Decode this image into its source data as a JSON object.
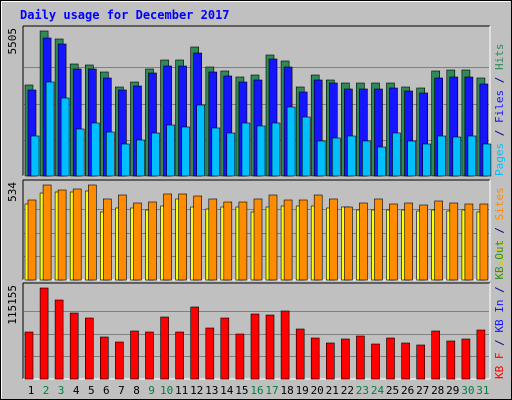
{
  "chart_data": {
    "type": "bar",
    "title": "Daily usage for December 2017",
    "days": [
      "1",
      "2",
      "3",
      "4",
      "5",
      "6",
      "7",
      "8",
      "9",
      "10",
      "11",
      "12",
      "13",
      "14",
      "15",
      "16",
      "17",
      "18",
      "19",
      "20",
      "21",
      "22",
      "23",
      "24",
      "25",
      "26",
      "27",
      "28",
      "29",
      "30",
      "31"
    ],
    "weekend_days": [
      2,
      3,
      9,
      10,
      16,
      17,
      23,
      24,
      30,
      31
    ],
    "panels": [
      {
        "id": "top",
        "max_label": "5505",
        "max_value": 5505,
        "series": [
          {
            "name": "Hits",
            "color": "#2e8b57",
            "values": [
              3440,
              5505,
              5220,
              4260,
              4230,
              3930,
              3390,
              3580,
              4060,
              4400,
              4400,
              4900,
              4140,
              3990,
              3740,
              3830,
              4610,
              4380,
              3360,
              3830,
              3650,
              3530,
              3530,
              3540,
              3540,
              3360,
              3330,
              4000,
              4040,
              4010,
              3730
            ]
          },
          {
            "name": "Files",
            "color": "#1515ff",
            "values": [
              3280,
              5245,
              5020,
              4080,
              4060,
              3730,
              3280,
              3420,
              3900,
              4190,
              4170,
              4660,
              3960,
              3790,
              3560,
              3660,
              4440,
              4130,
              3200,
              3660,
              3520,
              3320,
              3300,
              3300,
              3340,
              3230,
              3150,
              3720,
              3740,
              3770,
              3500
            ]
          },
          {
            "name": "Pages",
            "color": "#00bfff",
            "values": [
              1510,
              3550,
              2980,
              1780,
              2000,
              1670,
              1200,
              1380,
              1620,
              1950,
              1860,
              2680,
              1830,
              1650,
              2000,
              1900,
              2000,
              2630,
              2250,
              1320,
              1460,
              1510,
              1340,
              1110,
              1650,
              1320,
              1200,
              1530,
              1470,
              1520,
              1210
            ]
          }
        ]
      },
      {
        "id": "middle",
        "max_label": "534",
        "max_value": 534,
        "series": [
          {
            "name": "Visits",
            "color": "#ffff00",
            "values": [
              425,
              489,
              492,
              493,
              501,
              385,
              405,
              405,
              394,
              415,
              457,
              412,
              398,
              410,
              411,
              383,
              412,
              417,
              417,
              415,
              404,
              409,
              394,
              393,
              393,
              393,
              386,
              393,
              386,
              391,
              385
            ]
          },
          {
            "name": "Sites",
            "color": "#ff8c00",
            "values": [
              451,
              534,
              507,
              510,
              534,
              455,
              475,
              435,
              437,
              482,
              486,
              472,
              458,
              438,
              438,
              455,
              480,
              448,
              452,
              478,
              454,
              413,
              432,
              455,
              430,
              434,
              423,
              445,
              434,
              429,
              429
            ]
          }
        ]
      },
      {
        "id": "bottom",
        "max_label": "115155",
        "max_value": 115155,
        "series": [
          {
            "name": "KBytes",
            "color": "#ff0000",
            "values": [
              59000,
              115155,
              100000,
              84000,
              77000,
              53000,
              47000,
              61000,
              59000,
              78000,
              60000,
              91000,
              65000,
              77000,
              57000,
              82000,
              81000,
              86000,
              63000,
              52000,
              46000,
              50000,
              55000,
              44000,
              52000,
              45000,
              43000,
              61000,
              48000,
              50000,
              62000
            ]
          }
        ]
      }
    ],
    "legend_right": [
      {
        "text": "Pages",
        "color": "#00bfff"
      },
      {
        "text": " / ",
        "color": "#00008b"
      },
      {
        "text": "Files",
        "color": "#1515ff"
      },
      {
        "text": " / ",
        "color": "#00008b"
      },
      {
        "text": "Hits",
        "color": "#2e8b57"
      },
      {
        "text": "Visits",
        "color": "#cccc00"
      },
      {
        "text": " / ",
        "color": "#00008b"
      },
      {
        "text": "Sites",
        "color": "#ff8c00"
      },
      {
        "text": "KB F",
        "color": "#ff0000"
      },
      {
        "text": " / ",
        "color": "#00008b"
      },
      {
        "text": "KB In",
        "color": "#1515ff"
      },
      {
        "text": " / ",
        "color": "#00008b"
      },
      {
        "text": "KB Out",
        "color": "#2e8b57"
      }
    ],
    "colors": {
      "background": "#c0c0c0",
      "plot_bg": "#c0c0c0",
      "title": "#0000ff",
      "weekday_label": "#000000",
      "weekend_label": "#008040",
      "grid": "#808080"
    }
  }
}
